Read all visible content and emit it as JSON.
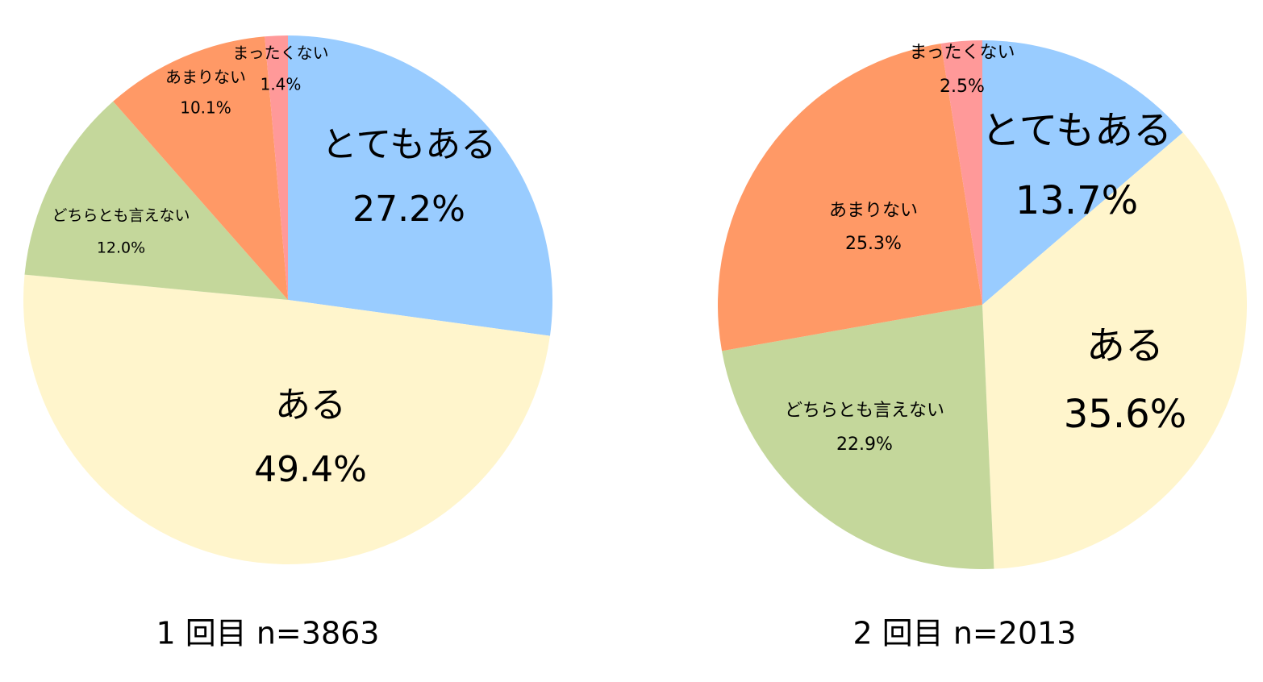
{
  "chart_data": [
    {
      "type": "pie",
      "title": "1 回目 n=3863",
      "categories": [
        "とてもある",
        "ある",
        "どちらとも言えない",
        "あまりない",
        "まったくない"
      ],
      "values": [
        27.2,
        49.4,
        12.0,
        10.1,
        1.4
      ],
      "value_labels": [
        "27.2%",
        "49.4%",
        "12.0%",
        "10.1%",
        "1.4%"
      ],
      "colors": [
        "#99ccff",
        "#fff5cc",
        "#c4d79b",
        "#ff9966",
        "#ff9999"
      ]
    },
    {
      "type": "pie",
      "title": "2 回目 n=2013",
      "categories": [
        "とてもある",
        "ある",
        "どちらとも言えない",
        "あまりない",
        "まったくない"
      ],
      "values": [
        13.7,
        35.6,
        22.9,
        25.3,
        2.5
      ],
      "value_labels": [
        "13.7%",
        "35.6%",
        "22.9%",
        "25.3%",
        "2.5%"
      ],
      "colors": [
        "#99ccff",
        "#fff5cc",
        "#c4d79b",
        "#ff9966",
        "#ff9999"
      ]
    }
  ]
}
